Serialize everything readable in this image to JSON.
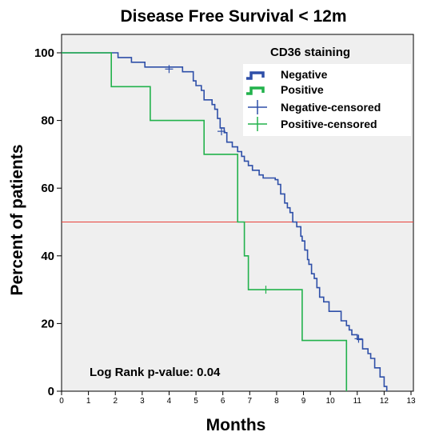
{
  "chart_data": {
    "type": "line",
    "title": "Disease Free Survival < 12m",
    "xlabel": "Months",
    "ylabel": "Percent of patients",
    "xlim": [
      0,
      13
    ],
    "ylim": [
      0,
      105
    ],
    "x_ticks": [
      "0",
      "1",
      "2",
      "3",
      "4",
      "5",
      "6",
      "7",
      "8",
      "9",
      "10",
      "11",
      "12",
      "13"
    ],
    "y_ticks": [
      "0",
      "20",
      "40",
      "60",
      "80",
      "100"
    ],
    "reference_line": {
      "y": 50,
      "color": "#e8413a"
    },
    "grid": false,
    "background": "#efefef",
    "legend": {
      "title": "CD36 staining",
      "placement": "top-right",
      "items": [
        "Negative",
        "Positive",
        "Negative-censored",
        "Positive-censored"
      ]
    },
    "annotation": "Log Rank p-value: 0.04",
    "series": [
      {
        "name": "Negative",
        "color": "#2e4fa8",
        "steps": [
          [
            0,
            100
          ],
          [
            2.0,
            100
          ],
          [
            2.1,
            98.6
          ],
          [
            2.6,
            97.2
          ],
          [
            3.1,
            95.8
          ],
          [
            4.5,
            94.4
          ],
          [
            4.9,
            91.7
          ],
          [
            5.0,
            90.3
          ],
          [
            5.2,
            88.9
          ],
          [
            5.3,
            86.1
          ],
          [
            5.6,
            84.7
          ],
          [
            5.7,
            83.3
          ],
          [
            5.8,
            80.6
          ],
          [
            5.9,
            77.8
          ],
          [
            6.05,
            76.4
          ],
          [
            6.15,
            73.6
          ],
          [
            6.35,
            72.2
          ],
          [
            6.55,
            70.8
          ],
          [
            6.7,
            69.4
          ],
          [
            6.8,
            68.0
          ],
          [
            6.95,
            66.7
          ],
          [
            7.1,
            65.3
          ],
          [
            7.35,
            63.9
          ],
          [
            7.5,
            63.0
          ],
          [
            7.95,
            62.5
          ],
          [
            8.05,
            61.1
          ],
          [
            8.15,
            58.3
          ],
          [
            8.3,
            55.6
          ],
          [
            8.4,
            54.2
          ],
          [
            8.5,
            52.8
          ],
          [
            8.6,
            50.0
          ],
          [
            8.75,
            48.6
          ],
          [
            8.9,
            45.8
          ],
          [
            8.95,
            44.4
          ],
          [
            9.05,
            41.7
          ],
          [
            9.15,
            38.9
          ],
          [
            9.2,
            37.5
          ],
          [
            9.3,
            34.7
          ],
          [
            9.4,
            33.3
          ],
          [
            9.5,
            30.6
          ],
          [
            9.6,
            27.8
          ],
          [
            9.75,
            26.4
          ],
          [
            9.95,
            23.6
          ],
          [
            10.4,
            20.8
          ],
          [
            10.6,
            19.4
          ],
          [
            10.7,
            18.1
          ],
          [
            10.8,
            16.7
          ],
          [
            11.0,
            15.3
          ],
          [
            11.2,
            12.5
          ],
          [
            11.4,
            11.1
          ],
          [
            11.5,
            9.7
          ],
          [
            11.65,
            6.9
          ],
          [
            11.85,
            4.2
          ],
          [
            12.0,
            1.4
          ],
          [
            12.1,
            0
          ]
        ],
        "censored": [
          [
            4.0,
            95.2
          ],
          [
            5.95,
            76.8
          ],
          [
            11.05,
            15.5
          ]
        ]
      },
      {
        "name": "Positive",
        "color": "#22b24c",
        "steps": [
          [
            0,
            100
          ],
          [
            1.85,
            100
          ],
          [
            1.85,
            90
          ],
          [
            3.3,
            90
          ],
          [
            3.3,
            80
          ],
          [
            5.3,
            80
          ],
          [
            5.3,
            70
          ],
          [
            6.55,
            70
          ],
          [
            6.55,
            50
          ],
          [
            6.8,
            50
          ],
          [
            6.8,
            40
          ],
          [
            6.95,
            40
          ],
          [
            6.95,
            30
          ],
          [
            8.95,
            30
          ],
          [
            8.95,
            15
          ],
          [
            10.6,
            15
          ],
          [
            10.6,
            0
          ]
        ],
        "censored": [
          [
            7.6,
            30
          ]
        ]
      }
    ]
  }
}
